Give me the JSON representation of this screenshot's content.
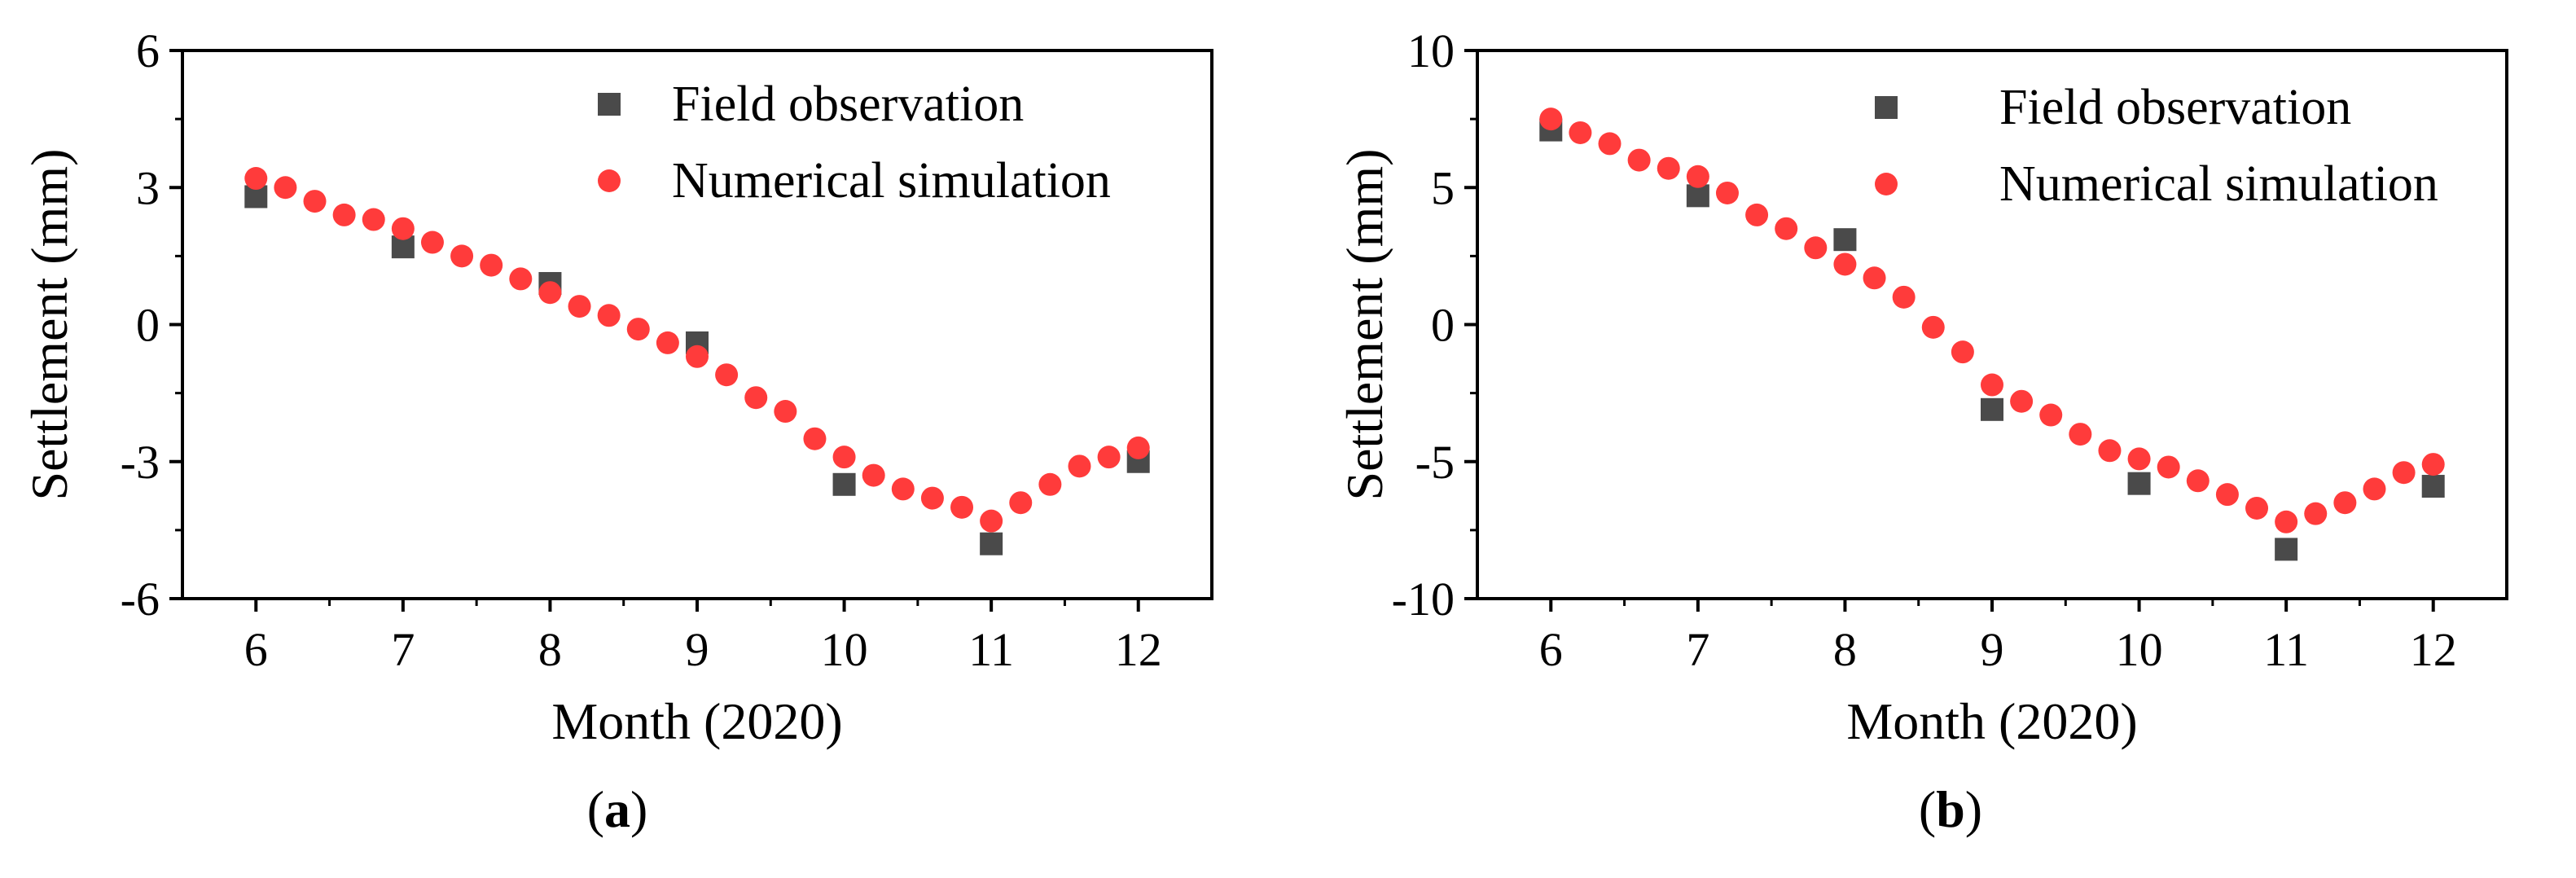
{
  "chart_data": [
    {
      "type": "scatter",
      "panel_label": {
        "open": "(",
        "letter": "a",
        "close": ")"
      },
      "xlabel": "Month (2020)",
      "ylabel": "Settlement (mm)",
      "xlim": [
        5.5,
        12.5
      ],
      "ylim": [
        -6,
        6
      ],
      "xticks": [
        6,
        7,
        8,
        9,
        10,
        11,
        12
      ],
      "yticks": [
        -6,
        -3,
        0,
        3,
        6
      ],
      "legend_position": "top-right",
      "series": [
        {
          "name": "Field observation",
          "marker": "square",
          "color": "#4a4a4a",
          "x": [
            6,
            7,
            8,
            9,
            10,
            11,
            12
          ],
          "y": [
            2.8,
            1.7,
            0.9,
            -0.4,
            -3.5,
            -4.8,
            -3.0
          ]
        },
        {
          "name": "Numerical simulation",
          "marker": "circle",
          "color": "#ff3b3b",
          "x": [
            6,
            6.2,
            6.4,
            6.6,
            6.8,
            7,
            7.2,
            7.4,
            7.6,
            7.8,
            8,
            8.2,
            8.4,
            8.6,
            8.8,
            9,
            9.2,
            9.4,
            9.6,
            9.8,
            10,
            10.2,
            10.4,
            10.6,
            10.8,
            11,
            11.2,
            11.4,
            11.6,
            11.8,
            12
          ],
          "y": [
            3.2,
            3.0,
            2.7,
            2.4,
            2.3,
            2.1,
            1.8,
            1.5,
            1.3,
            1.0,
            0.7,
            0.4,
            0.2,
            -0.1,
            -0.4,
            -0.7,
            -1.1,
            -1.6,
            -1.9,
            -2.5,
            -2.9,
            -3.3,
            -3.6,
            -3.8,
            -4.0,
            -4.3,
            -3.9,
            -3.5,
            -3.1,
            -2.9,
            -2.7
          ]
        }
      ]
    },
    {
      "type": "scatter",
      "panel_label": {
        "open": "(",
        "letter": "b",
        "close": ")"
      },
      "xlabel": "Month (2020)",
      "ylabel": "Settlement (mm)",
      "xlim": [
        5.5,
        12.5
      ],
      "ylim": [
        -10,
        10
      ],
      "xticks": [
        6,
        7,
        8,
        9,
        10,
        11,
        12
      ],
      "yticks": [
        -10,
        -5,
        0,
        5,
        10
      ],
      "legend_position": "top-right",
      "series": [
        {
          "name": "Field observation",
          "marker": "square",
          "color": "#4a4a4a",
          "x": [
            6,
            7,
            8,
            9,
            10,
            11,
            12
          ],
          "y": [
            7.1,
            4.7,
            3.1,
            -3.1,
            -5.8,
            -8.2,
            -5.9
          ]
        },
        {
          "name": "Numerical simulation",
          "marker": "circle",
          "color": "#ff3b3b",
          "x": [
            6,
            6.2,
            6.4,
            6.6,
            6.8,
            7,
            7.2,
            7.4,
            7.6,
            7.8,
            8,
            8.2,
            8.4,
            8.6,
            8.8,
            9,
            9.2,
            9.4,
            9.6,
            9.8,
            10,
            10.2,
            10.4,
            10.6,
            10.8,
            11,
            11.2,
            11.4,
            11.6,
            11.8,
            12
          ],
          "y": [
            7.5,
            7.0,
            6.6,
            6.0,
            5.7,
            5.4,
            4.8,
            4.0,
            3.5,
            2.8,
            2.2,
            1.7,
            1.0,
            -0.1,
            -1.0,
            -2.2,
            -2.8,
            -3.3,
            -4.0,
            -4.6,
            -4.9,
            -5.2,
            -5.7,
            -6.2,
            -6.7,
            -7.2,
            -6.9,
            -6.5,
            -6.0,
            -5.4,
            -5.1
          ]
        }
      ]
    }
  ]
}
